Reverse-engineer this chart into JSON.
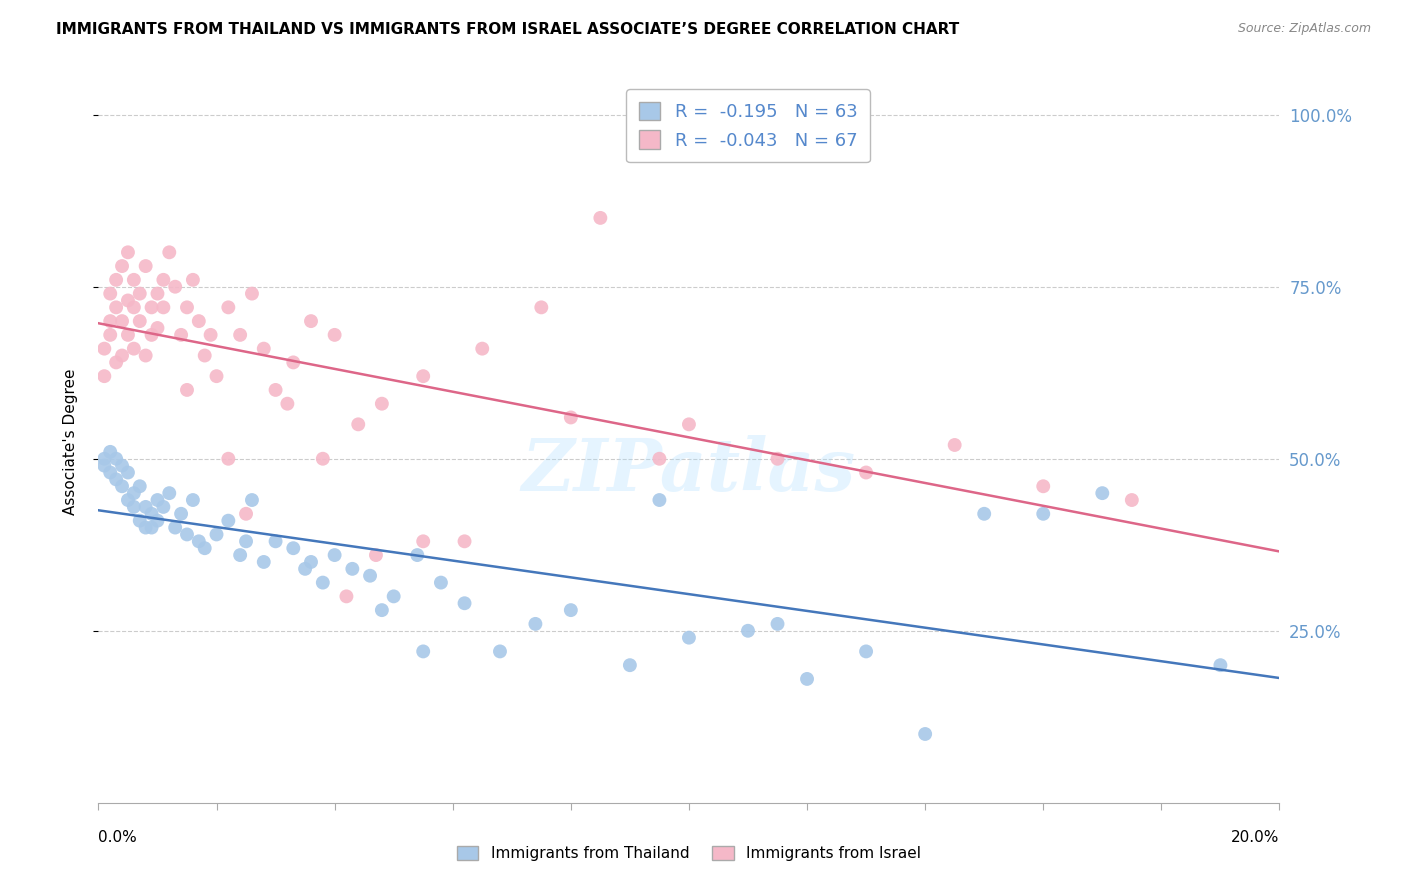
{
  "title": "IMMIGRANTS FROM THAILAND VS IMMIGRANTS FROM ISRAEL ASSOCIATE’S DEGREE CORRELATION CHART",
  "source": "Source: ZipAtlas.com",
  "ylabel": "Associate's Degree",
  "color_thailand": "#a8c8e8",
  "color_israel": "#f5b8c8",
  "color_trendline_thailand": "#4477bb",
  "color_trendline_israel": "#dd6688",
  "color_right_axis": "#6699cc",
  "color_legend_text": "#5588cc",
  "watermark_text": "ZIPatlas",
  "legend_line1": "R =  -0.195   N = 63",
  "legend_line2": "R =  -0.043   N = 67",
  "bottom_legend1": "Immigrants from Thailand",
  "bottom_legend2": "Immigrants from Israel",
  "background_color": "#ffffff",
  "grid_color": "#cccccc",
  "thailand_x": [
    0.001,
    0.001,
    0.002,
    0.002,
    0.003,
    0.003,
    0.004,
    0.004,
    0.005,
    0.005,
    0.006,
    0.006,
    0.007,
    0.007,
    0.008,
    0.008,
    0.009,
    0.009,
    0.01,
    0.01,
    0.011,
    0.012,
    0.013,
    0.014,
    0.015,
    0.016,
    0.017,
    0.018,
    0.02,
    0.022,
    0.024,
    0.026,
    0.028,
    0.03,
    0.033,
    0.036,
    0.038,
    0.04,
    0.043,
    0.046,
    0.05,
    0.054,
    0.058,
    0.062,
    0.068,
    0.074,
    0.08,
    0.09,
    0.1,
    0.11,
    0.12,
    0.13,
    0.15,
    0.17,
    0.19,
    0.025,
    0.035,
    0.048,
    0.055,
    0.095,
    0.115,
    0.14,
    0.16
  ],
  "thailand_y": [
    0.5,
    0.49,
    0.51,
    0.48,
    0.47,
    0.5,
    0.49,
    0.46,
    0.48,
    0.44,
    0.45,
    0.43,
    0.46,
    0.41,
    0.43,
    0.4,
    0.42,
    0.4,
    0.44,
    0.41,
    0.43,
    0.45,
    0.4,
    0.42,
    0.39,
    0.44,
    0.38,
    0.37,
    0.39,
    0.41,
    0.36,
    0.44,
    0.35,
    0.38,
    0.37,
    0.35,
    0.32,
    0.36,
    0.34,
    0.33,
    0.3,
    0.36,
    0.32,
    0.29,
    0.22,
    0.26,
    0.28,
    0.2,
    0.24,
    0.25,
    0.18,
    0.22,
    0.42,
    0.45,
    0.2,
    0.38,
    0.34,
    0.28,
    0.22,
    0.44,
    0.26,
    0.1,
    0.42
  ],
  "israel_x": [
    0.001,
    0.001,
    0.002,
    0.002,
    0.002,
    0.003,
    0.003,
    0.003,
    0.004,
    0.004,
    0.004,
    0.005,
    0.005,
    0.005,
    0.006,
    0.006,
    0.006,
    0.007,
    0.007,
    0.008,
    0.008,
    0.009,
    0.009,
    0.01,
    0.01,
    0.011,
    0.011,
    0.012,
    0.013,
    0.014,
    0.015,
    0.016,
    0.017,
    0.018,
    0.019,
    0.02,
    0.022,
    0.024,
    0.026,
    0.028,
    0.03,
    0.033,
    0.036,
    0.04,
    0.044,
    0.048,
    0.055,
    0.065,
    0.075,
    0.085,
    0.1,
    0.115,
    0.13,
    0.145,
    0.16,
    0.175,
    0.038,
    0.022,
    0.055,
    0.08,
    0.095,
    0.047,
    0.062,
    0.015,
    0.025,
    0.032,
    0.042
  ],
  "israel_y": [
    0.62,
    0.66,
    0.7,
    0.74,
    0.68,
    0.76,
    0.72,
    0.64,
    0.78,
    0.65,
    0.7,
    0.8,
    0.73,
    0.68,
    0.76,
    0.72,
    0.66,
    0.74,
    0.7,
    0.78,
    0.65,
    0.72,
    0.68,
    0.74,
    0.69,
    0.76,
    0.72,
    0.8,
    0.75,
    0.68,
    0.72,
    0.76,
    0.7,
    0.65,
    0.68,
    0.62,
    0.72,
    0.68,
    0.74,
    0.66,
    0.6,
    0.64,
    0.7,
    0.68,
    0.55,
    0.58,
    0.62,
    0.66,
    0.72,
    0.85,
    0.55,
    0.5,
    0.48,
    0.52,
    0.46,
    0.44,
    0.5,
    0.5,
    0.38,
    0.56,
    0.5,
    0.36,
    0.38,
    0.6,
    0.42,
    0.58,
    0.3
  ],
  "xlim": [
    0.0,
    0.2
  ],
  "ylim": [
    0.0,
    1.05
  ],
  "yticks": [
    0.25,
    0.5,
    0.75,
    1.0
  ],
  "ytick_labels": [
    "25.0%",
    "50.0%",
    "75.0%",
    "100.0%"
  ]
}
